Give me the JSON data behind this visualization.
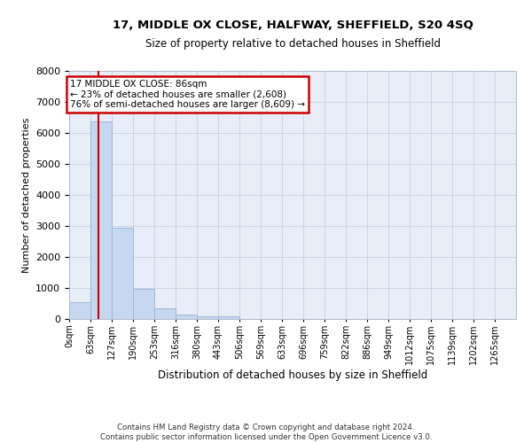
{
  "title": "17, MIDDLE OX CLOSE, HALFWAY, SHEFFIELD, S20 4SQ",
  "subtitle": "Size of property relative to detached houses in Sheffield",
  "xlabel": "Distribution of detached houses by size in Sheffield",
  "ylabel": "Number of detached properties",
  "footer_line1": "Contains HM Land Registry data © Crown copyright and database right 2024.",
  "footer_line2": "Contains public sector information licensed under the Open Government Licence v3.0.",
  "bar_labels": [
    "0sqm",
    "63sqm",
    "127sqm",
    "190sqm",
    "253sqm",
    "316sqm",
    "380sqm",
    "443sqm",
    "506sqm",
    "569sqm",
    "633sqm",
    "696sqm",
    "759sqm",
    "822sqm",
    "886sqm",
    "949sqm",
    "1012sqm",
    "1075sqm",
    "1139sqm",
    "1202sqm",
    "1265sqm"
  ],
  "bar_values": [
    550,
    6380,
    2930,
    960,
    330,
    155,
    100,
    75,
    0,
    0,
    0,
    0,
    0,
    0,
    0,
    0,
    0,
    0,
    0,
    0,
    0
  ],
  "bar_color": "#c5d8f0",
  "bar_edge_color": "#a0b8d8",
  "grid_color": "#c8d0e0",
  "background_color": "#e8eef8",
  "annotation_box_text": "17 MIDDLE OX CLOSE: 86sqm\n← 23% of detached houses are smaller (2,608)\n76% of semi-detached houses are larger (8,609) →",
  "annotation_box_color": "#ffffff",
  "annotation_box_edge_color": "#cc0000",
  "vline_x": 86,
  "vline_color": "#cc0000",
  "ylim": [
    0,
    8000
  ],
  "yticks": [
    0,
    1000,
    2000,
    3000,
    4000,
    5000,
    6000,
    7000,
    8000
  ],
  "bin_width": 63,
  "n_bars": 21
}
